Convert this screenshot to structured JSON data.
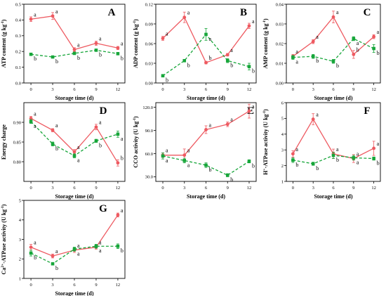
{
  "colors": {
    "red": "#ee5a61",
    "green": "#17a63a",
    "errorbar": "#9a9a9a"
  },
  "chart_data": [
    {
      "type": "line",
      "letter": "A",
      "ylabel": "ATP content (g kg",
      "ylabel_sup": "-1",
      "ylabel_tail": ")",
      "xlabel": "Storage time (d)",
      "x": [
        0,
        3,
        6,
        9,
        12
      ],
      "xticks": [
        "0",
        "3",
        "6",
        "9",
        "12"
      ],
      "ylim": [
        0.0,
        0.5
      ],
      "yticks": [
        "0.0",
        "0.1",
        "0.2",
        "0.3",
        "0.4",
        "0.5"
      ],
      "series": [
        {
          "color": "red",
          "dash": false,
          "values": [
            0.405,
            0.425,
            0.212,
            0.252,
            0.222
          ],
          "errors": [
            0.015,
            0.022,
            0.012,
            0.013,
            0.01
          ],
          "labels": [
            "a",
            "a",
            "a",
            "a",
            "a"
          ]
        },
        {
          "color": "green",
          "dash": true,
          "values": [
            0.182,
            0.165,
            0.188,
            0.208,
            0.186
          ],
          "errors": [
            0.008,
            0.006,
            0.008,
            0.007,
            0.008
          ],
          "labels": [
            "b",
            "b",
            "b",
            "b",
            "b"
          ]
        }
      ]
    },
    {
      "type": "line",
      "letter": "B",
      "ylabel": "ADP content (g kg",
      "ylabel_sup": "-1",
      "ylabel_tail": ")",
      "xlabel": "Storage time (d)",
      "x": [
        0,
        3,
        6,
        9,
        12
      ],
      "xticks": [
        "0",
        "3",
        "6",
        "9",
        "12"
      ],
      "ylim": [
        0.0,
        0.12
      ],
      "yticks": [
        "0.00",
        "0.03",
        "0.06",
        "0.09",
        "0.12"
      ],
      "series": [
        {
          "color": "red",
          "dash": false,
          "values": [
            0.068,
            0.1,
            0.031,
            0.043,
            0.087
          ],
          "errors": [
            0.003,
            0.008,
            0.002,
            0.002,
            0.004
          ],
          "labels": [
            "a",
            "a",
            "b",
            "a",
            "a"
          ]
        },
        {
          "color": "green",
          "dash": true,
          "values": [
            0.011,
            0.034,
            0.074,
            0.034,
            0.025
          ],
          "errors": [
            0.002,
            0.002,
            0.009,
            0.003,
            0.005
          ],
          "labels": [
            "b",
            "b",
            "a",
            "b",
            "b"
          ]
        }
      ]
    },
    {
      "type": "line",
      "letter": "C",
      "ylabel": "AMP content (g kg",
      "ylabel_sup": "-1",
      "ylabel_tail": ")",
      "xlabel": "Storage time (d)",
      "x": [
        0,
        3,
        6,
        9,
        12
      ],
      "xticks": [
        "0",
        "3",
        "6",
        "9",
        "12"
      ],
      "ylim": [
        0.0,
        0.04
      ],
      "yticks": [
        "0.00",
        "0.01",
        "0.02",
        "0.03",
        "0.04"
      ],
      "series": [
        {
          "color": "red",
          "dash": false,
          "values": [
            0.0135,
            0.021,
            0.0335,
            0.0145,
            0.0235
          ],
          "errors": [
            0.001,
            0.001,
            0.003,
            0.002,
            0.001
          ],
          "labels": [
            "a",
            "a",
            "a",
            "b",
            "a"
          ]
        },
        {
          "color": "green",
          "dash": true,
          "values": [
            0.013,
            0.0135,
            0.011,
            0.0225,
            0.0175
          ],
          "errors": [
            0.001,
            0.001,
            0.001,
            0.001,
            0.002
          ],
          "labels": [
            "a",
            "b",
            "b",
            "a",
            "b"
          ]
        }
      ]
    },
    {
      "type": "line",
      "letter": "D",
      "ylabel": "Energy charge",
      "ylabel_sup": "",
      "ylabel_tail": "",
      "xlabel": "Storage time (d)",
      "x": [
        0,
        3,
        6,
        9,
        12
      ],
      "xticks": [
        "0",
        "3",
        "6",
        "9",
        "12"
      ],
      "ylim": [
        0.75,
        0.95
      ],
      "yticks": [
        "0.80",
        "0.85",
        "0.90"
      ],
      "series": [
        {
          "color": "red",
          "dash": false,
          "values": [
            0.91,
            0.88,
            0.825,
            0.888,
            0.797
          ],
          "errors": [
            0.005,
            0.004,
            0.006,
            0.007,
            0.008
          ],
          "labels": [
            "a",
            "a",
            "a",
            "a",
            "b"
          ]
        },
        {
          "color": "green",
          "dash": true,
          "values": [
            0.902,
            0.845,
            0.815,
            0.853,
            0.87
          ],
          "errors": [
            0.005,
            0.005,
            0.005,
            0.004,
            0.008
          ],
          "labels": [
            "a",
            "b",
            "a",
            "b",
            "a"
          ]
        }
      ]
    },
    {
      "type": "line",
      "letter": "E",
      "ylabel": "CCO activity (U kg",
      "ylabel_sup": "-1",
      "ylabel_tail": ")",
      "xlabel": "Storage time (d)",
      "x": [
        0,
        3,
        6,
        9,
        12
      ],
      "xticks": [
        "0",
        "3",
        "6",
        "9",
        "12"
      ],
      "ylim": [
        24,
        126
      ],
      "yticks": [
        "30.0",
        "60.0",
        "90.0",
        "120.0"
      ],
      "series": [
        {
          "color": "red",
          "dash": false,
          "values": [
            58,
            58,
            91,
            98,
            115
          ],
          "errors": [
            3,
            8,
            5,
            3,
            9
          ],
          "labels": [
            "a",
            "a",
            "a",
            "a",
            "a"
          ]
        },
        {
          "color": "green",
          "dash": true,
          "values": [
            57,
            51,
            45,
            32,
            50
          ],
          "errors": [
            4,
            3,
            3,
            2,
            2
          ],
          "labels": [
            "a",
            "a",
            "b",
            "b",
            "b"
          ]
        }
      ]
    },
    {
      "type": "line",
      "letter": "F",
      "ylabel": "H",
      "ylabel_sup": "+",
      "ylabel_tail": "-ATPase activity (U kg",
      "ylabel_sup2": "-1",
      "ylabel_tail2": ")",
      "xlabel": "Storage time (d)",
      "x": [
        0,
        3,
        6,
        9,
        12
      ],
      "xticks": [
        "0",
        "3",
        "6",
        "9",
        "12"
      ],
      "ylim": [
        1,
        6
      ],
      "yticks": [
        "1",
        "2",
        "3",
        "4",
        "5",
        "6"
      ],
      "series": [
        {
          "color": "red",
          "dash": false,
          "values": [
            2.75,
            4.95,
            2.75,
            2.45,
            3.1
          ],
          "errors": [
            0.2,
            0.35,
            0.3,
            0.25,
            0.45
          ],
          "labels": [
            "a",
            "a",
            "a",
            "a",
            "a"
          ]
        },
        {
          "color": "green",
          "dash": true,
          "values": [
            2.35,
            2.12,
            2.65,
            2.5,
            2.45
          ],
          "errors": [
            0.15,
            0.1,
            0.2,
            0.15,
            0.1
          ],
          "labels": [
            "b",
            "b",
            "b",
            "a",
            "b"
          ]
        }
      ]
    },
    {
      "type": "line",
      "letter": "G",
      "ylabel": "Ca",
      "ylabel_sup": "2+",
      "ylabel_tail": "-ATPase activity (U kg",
      "ylabel_sup2": "-1",
      "ylabel_tail2": ")",
      "xlabel": "Storage time (d)",
      "x": [
        0,
        3,
        6,
        9,
        12
      ],
      "xticks": [
        "0",
        "3",
        "6",
        "9",
        "12"
      ],
      "ylim": [
        1,
        5
      ],
      "yticks": [
        "1",
        "2",
        "3",
        "4",
        "5"
      ],
      "series": [
        {
          "color": "red",
          "dash": false,
          "values": [
            2.6,
            2.15,
            2.45,
            2.6,
            4.25
          ],
          "errors": [
            0.15,
            0.1,
            0.12,
            0.1,
            0.1
          ],
          "labels": [
            "a",
            "a",
            "a",
            "a",
            "a"
          ]
        },
        {
          "color": "green",
          "dash": true,
          "values": [
            2.3,
            1.75,
            2.5,
            2.65,
            2.65
          ],
          "errors": [
            0.15,
            0.05,
            0.1,
            0.1,
            0.12
          ],
          "labels": [
            "b",
            "b",
            "a",
            "a",
            "b"
          ]
        }
      ]
    }
  ]
}
